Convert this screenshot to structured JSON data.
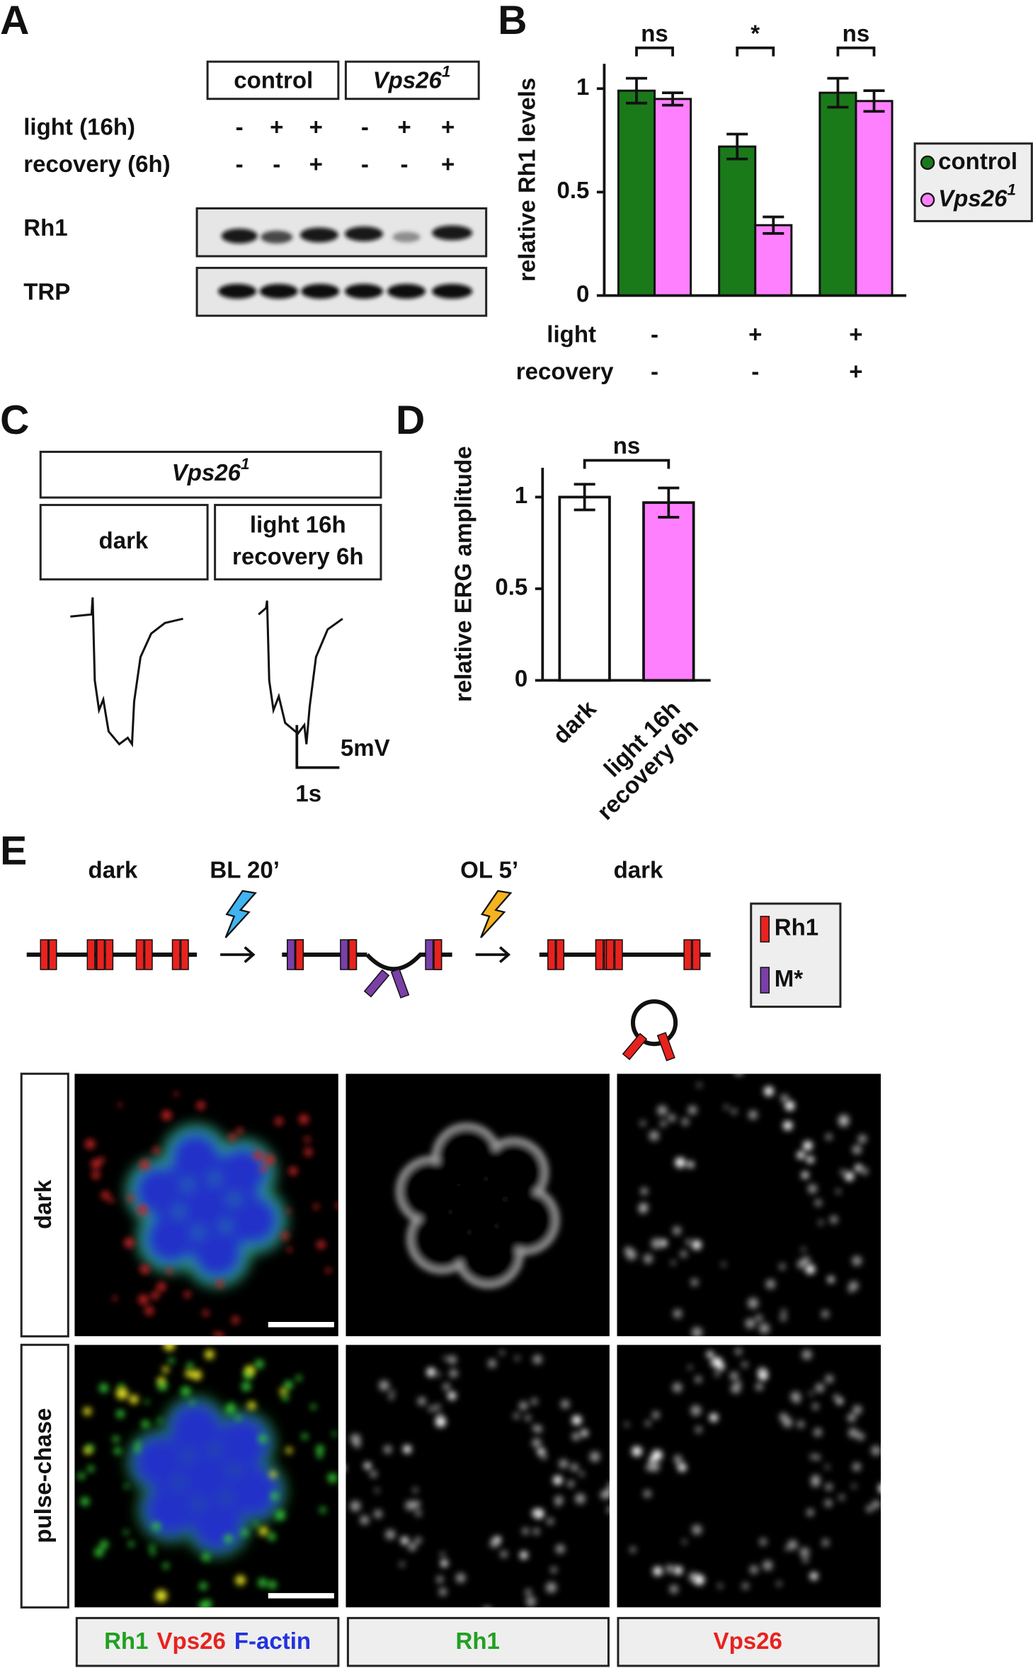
{
  "panel_labels": [
    "A",
    "B",
    "C",
    "D",
    "E"
  ],
  "panel_a": {
    "groups": [
      {
        "label": "control"
      },
      {
        "label": "Vps26",
        "superscript": "1"
      }
    ],
    "rows": [
      {
        "label": "light (16h)",
        "signs": [
          "-",
          "+",
          "+",
          "-",
          "+",
          "+"
        ]
      },
      {
        "label": "recovery (6h)",
        "signs": [
          "-",
          "-",
          "+",
          "-",
          "-",
          "+"
        ]
      }
    ],
    "blots": [
      "Rh1",
      "TRP"
    ]
  },
  "chart_data": [
    {
      "type": "bar",
      "ylabel": "relative Rh1 levels",
      "ylim": [
        0,
        1.12
      ],
      "yticks": [
        0,
        0.5,
        1
      ],
      "conditions": [
        {
          "label": "light",
          "signs": [
            "-",
            "+",
            "+"
          ]
        },
        {
          "label": "recovery",
          "signs": [
            "-",
            "-",
            "+"
          ]
        }
      ],
      "series": [
        {
          "name": "control",
          "color": "#1a7a1a",
          "values": [
            0.99,
            0.72,
            0.98
          ],
          "errors": [
            0.06,
            0.06,
            0.07
          ]
        },
        {
          "name": "Vps26",
          "superscript": "1",
          "color": "#ff80ff",
          "values": [
            0.95,
            0.34,
            0.94
          ],
          "errors": [
            0.03,
            0.04,
            0.05
          ]
        }
      ],
      "significance": [
        "ns",
        "*",
        "ns"
      ],
      "legend": "right"
    },
    {
      "type": "bar",
      "ylabel": "relative ERG amplitude",
      "ylim": [
        0,
        1.16
      ],
      "yticks": [
        0,
        0.5,
        1
      ],
      "categories": [
        "dark",
        [
          "light 16h",
          "recovery 6h"
        ]
      ],
      "values": [
        1.0,
        0.97
      ],
      "errors": [
        0.07,
        0.08
      ],
      "colors": [
        "#ffffff",
        "#ff80ff"
      ],
      "significance": [
        "ns"
      ]
    }
  ],
  "panel_c": {
    "header": {
      "label": "Vps26",
      "superscript": "1"
    },
    "conditions": [
      "dark",
      [
        "light 16h",
        "recovery 6h"
      ]
    ],
    "scale_y": "5mV",
    "scale_x": "1s"
  },
  "panel_e": {
    "steps": [
      "dark",
      "BL 20’",
      "OL 5’",
      "dark"
    ],
    "legend": [
      "Rh1",
      "M*"
    ],
    "rows": [
      "dark",
      "pulse-chase"
    ],
    "channels": [
      [
        {
          "text": "Rh1",
          "color": "#22a022"
        },
        {
          "text": "Vps26",
          "color": "#e8221e"
        },
        {
          "text": "F-actin",
          "color": "#2233dd"
        }
      ],
      [
        {
          "text": "Rh1",
          "color": "#22a022"
        }
      ],
      [
        {
          "text": "Vps26",
          "color": "#e8221e"
        }
      ]
    ]
  }
}
